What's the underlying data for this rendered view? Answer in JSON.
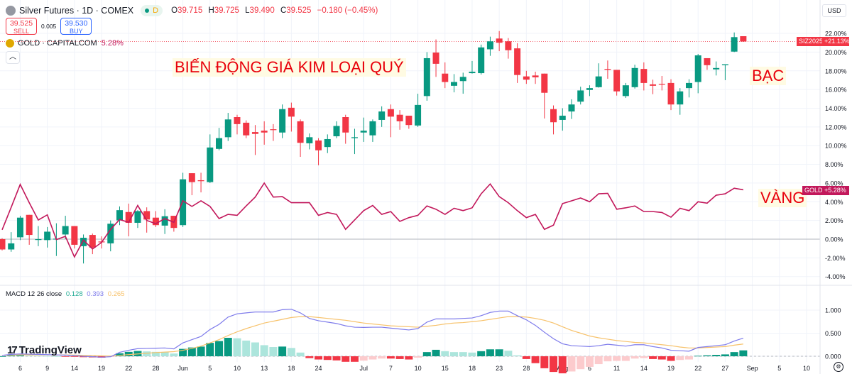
{
  "header": {
    "symbol": "Silver Futures · 1D · COMEX",
    "interval_badge": "D",
    "open_label": "O",
    "open": "39.715",
    "high_label": "H",
    "high": "39.725",
    "low_label": "L",
    "low": "39.490",
    "close_label": "C",
    "close": "39.525",
    "change": "−0.180 (−0.45%)"
  },
  "trade": {
    "sell_price": "39.525",
    "sell_label": "SELL",
    "spread": "0.005",
    "buy_price": "39.530",
    "buy_label": "BUY"
  },
  "compare": {
    "name": "GOLD · CAPITALCOM",
    "pct": "5.28%"
  },
  "currency": "USD",
  "annotations": {
    "title": "BIẾN ĐỘNG GIÁ KIM LOẠI QUÝ",
    "silver": "BẠC",
    "gold": "VÀNG"
  },
  "price_tags": {
    "silver_symbol": "SIZ2025",
    "silver_pct": "+21.13%",
    "gold_symbol": "GOLD",
    "gold_pct": "+5.28%"
  },
  "macd_legend": {
    "name": "MACD 12 26 close",
    "hist": "0.128",
    "macd": "0.393",
    "signal": "0.265"
  },
  "branding": "TradingView",
  "colors": {
    "up": "#089981",
    "down": "#F23645",
    "up_light": "#ACE5DC",
    "down_light": "#FCCBCD",
    "gold": "#C2185B",
    "macd": "#7E7BEB",
    "signal": "#F7C26B"
  },
  "chart_data": [
    {
      "type": "candlestick",
      "title": "Silver Futures · 1D · COMEX",
      "y_unit": "percent",
      "ylim": [
        -5,
        23
      ],
      "yticks": [
        "22.00%",
        "20.00%",
        "18.00%",
        "16.00%",
        "14.00%",
        "12.00%",
        "10.00%",
        "8.00%",
        "6.00%",
        "4.00%",
        "2.00%",
        "0.00%",
        "-2.00%",
        "-4.00%"
      ],
      "ytick_values": [
        22,
        20,
        18,
        16,
        14,
        12,
        10,
        8,
        6,
        4,
        2,
        0,
        -2,
        -4
      ],
      "xticks": [
        {
          "label": "6",
          "date": "2025-05-06"
        },
        {
          "label": "9",
          "date": "2025-05-09"
        },
        {
          "label": "14",
          "date": "2025-05-14"
        },
        {
          "label": "19",
          "date": "2025-05-19"
        },
        {
          "label": "22",
          "date": "2025-05-22"
        },
        {
          "label": "28",
          "date": "2025-05-28"
        },
        {
          "label": "Jun",
          "date": "2025-06-02"
        },
        {
          "label": "5",
          "date": "2025-06-05"
        },
        {
          "label": "10",
          "date": "2025-06-10"
        },
        {
          "label": "13",
          "date": "2025-06-13"
        },
        {
          "label": "18",
          "date": "2025-06-18"
        },
        {
          "label": "24",
          "date": "2025-06-24"
        },
        {
          "label": "Jul",
          "date": "2025-07-01"
        },
        {
          "label": "7",
          "date": "2025-07-07"
        },
        {
          "label": "10",
          "date": "2025-07-10"
        },
        {
          "label": "15",
          "date": "2025-07-15"
        },
        {
          "label": "18",
          "date": "2025-07-18"
        },
        {
          "label": "23",
          "date": "2025-07-23"
        },
        {
          "label": "28",
          "date": "2025-07-28"
        },
        {
          "label": "Aug",
          "date": "2025-08-01"
        },
        {
          "label": "6",
          "date": "2025-08-06"
        },
        {
          "label": "11",
          "date": "2025-08-11"
        },
        {
          "label": "14",
          "date": "2025-08-14"
        },
        {
          "label": "19",
          "date": "2025-08-19"
        },
        {
          "label": "22",
          "date": "2025-08-22"
        },
        {
          "label": "27",
          "date": "2025-08-27"
        },
        {
          "label": "Sep",
          "date": "2025-09-02"
        },
        {
          "label": "5",
          "date": "2025-09-05"
        },
        {
          "label": "10",
          "date": "2025-09-10"
        }
      ],
      "candle_fields": [
        "date",
        "open",
        "high",
        "low",
        "close"
      ],
      "candles": [
        [
          "2025-05-02",
          0,
          0.1,
          -1.2,
          -1.1
        ],
        [
          "2025-05-05",
          -1.1,
          0.75,
          -1.35,
          -0.45
        ],
        [
          "2025-05-06",
          0.2,
          2.5,
          -0.1,
          2.3
        ],
        [
          "2025-05-07",
          2.6,
          2.6,
          -0.6,
          0.45
        ],
        [
          "2025-05-08",
          -0.05,
          1.4,
          -0.75,
          0
        ],
        [
          "2025-05-09",
          -0.1,
          1.3,
          -0.9,
          0.8
        ],
        [
          "2025-05-12",
          0,
          1.7,
          -1.8,
          0.05
        ],
        [
          "2025-05-13",
          0.5,
          2.5,
          0,
          1.4
        ],
        [
          "2025-05-14",
          1.4,
          1.4,
          -1,
          -0.6
        ],
        [
          "2025-05-15",
          -0.75,
          0.5,
          -2.6,
          0.15
        ],
        [
          "2025-05-16",
          0.45,
          0.6,
          -1.6,
          -0.9
        ],
        [
          "2025-05-19",
          -0.25,
          0.3,
          -1,
          -0.3
        ],
        [
          "2025-05-20",
          -0.45,
          2,
          -1.3,
          1.65
        ],
        [
          "2025-05-21",
          2,
          3.5,
          1.5,
          3.1
        ],
        [
          "2025-05-22",
          2.9,
          3.8,
          0.3,
          1.75
        ],
        [
          "2025-05-23",
          1.75,
          3.1,
          1.2,
          3
        ],
        [
          "2025-05-27",
          3,
          3.4,
          0.7,
          2.1
        ],
        [
          "2025-05-28",
          2.3,
          3,
          1.3,
          1.5
        ],
        [
          "2025-05-29",
          1.45,
          3.2,
          0.55,
          2.45
        ],
        [
          "2025-05-30",
          2.5,
          2.5,
          0.8,
          1.2
        ],
        [
          "2025-06-02",
          1.5,
          7.1,
          1.3,
          6.4
        ],
        [
          "2025-06-03",
          7.05,
          7.05,
          4.7,
          6.1
        ],
        [
          "2025-06-04",
          6.3,
          7.1,
          5,
          6.2
        ],
        [
          "2025-06-05",
          6.1,
          11.2,
          6,
          9.8
        ],
        [
          "2025-06-06",
          9.65,
          11.9,
          9.5,
          10.8
        ],
        [
          "2025-06-09",
          10.9,
          13.5,
          10.5,
          12.8
        ],
        [
          "2025-06-10",
          13.05,
          13.3,
          11.2,
          12.3
        ],
        [
          "2025-06-11",
          12.45,
          12.7,
          10.8,
          11.1
        ],
        [
          "2025-06-12",
          11.45,
          12.2,
          9,
          11.25
        ],
        [
          "2025-06-13",
          11.6,
          12.6,
          10.1,
          11.4
        ],
        [
          "2025-06-16",
          11.75,
          12.3,
          10.5,
          11.7
        ],
        [
          "2025-06-17",
          11.4,
          14.4,
          10.8,
          13.9
        ],
        [
          "2025-06-18",
          14.05,
          14.6,
          11.5,
          13.1
        ],
        [
          "2025-06-20",
          12.6,
          12.8,
          8.8,
          10.3
        ],
        [
          "2025-06-23",
          10.25,
          11.3,
          9.6,
          10.9
        ],
        [
          "2025-06-24",
          10.55,
          10.8,
          7.9,
          9.5
        ],
        [
          "2025-06-25",
          9.85,
          11.2,
          9.2,
          10.7
        ],
        [
          "2025-06-26",
          11,
          12.6,
          10.8,
          12.1
        ],
        [
          "2025-06-27",
          13.05,
          13.3,
          10.2,
          11.4
        ],
        [
          "2025-06-30",
          10.8,
          11.8,
          9.1,
          10.9
        ],
        [
          "2025-07-01",
          11.4,
          13,
          10.4,
          11.6
        ],
        [
          "2025-07-02",
          11.1,
          12.8,
          10.4,
          12.6
        ],
        [
          "2025-07-03",
          12.75,
          14.2,
          12,
          13.65
        ],
        [
          "2025-07-07",
          13.9,
          14.4,
          10.9,
          13.1
        ],
        [
          "2025-07-08",
          13.3,
          13.8,
          11.7,
          12.6
        ],
        [
          "2025-07-09",
          13.2,
          13.2,
          11.8,
          12.2
        ],
        [
          "2025-07-10",
          12.15,
          15.55,
          12,
          14.35
        ],
        [
          "2025-07-11",
          15.3,
          20,
          14.8,
          19.35
        ],
        [
          "2025-07-14",
          19.95,
          21.35,
          17.35,
          18.75
        ],
        [
          "2025-07-15",
          17.7,
          18.9,
          16.15,
          16.8
        ],
        [
          "2025-07-16",
          16.4,
          17.65,
          15.7,
          16.8
        ],
        [
          "2025-07-17",
          16.9,
          17.8,
          15.55,
          17.35
        ],
        [
          "2025-07-18",
          17.75,
          19.05,
          17.7,
          17.9
        ],
        [
          "2025-07-21",
          17.75,
          20.8,
          17.6,
          20.5
        ],
        [
          "2025-07-22",
          20.3,
          21.65,
          19.6,
          21.15
        ],
        [
          "2025-07-23",
          21.45,
          22.25,
          20.1,
          21
        ],
        [
          "2025-07-24",
          21.15,
          21.5,
          19.3,
          20.2
        ],
        [
          "2025-07-25",
          20.4,
          20.95,
          16.7,
          17.55
        ],
        [
          "2025-07-28",
          17.4,
          18,
          16.6,
          17.05
        ],
        [
          "2025-07-29",
          17.5,
          17.9,
          16.6,
          17.3
        ],
        [
          "2025-07-30",
          17.7,
          17.7,
          12.9,
          15.65
        ],
        [
          "2025-07-31",
          13.9,
          14.3,
          11.2,
          12.5
        ],
        [
          "2025-08-01",
          12.75,
          14,
          11.6,
          13.2
        ],
        [
          "2025-08-04",
          13.65,
          14.95,
          12.85,
          14.4
        ],
        [
          "2025-08-05",
          14.7,
          16.3,
          14.4,
          15.9
        ],
        [
          "2025-08-06",
          15.95,
          16.45,
          15.3,
          16.15
        ],
        [
          "2025-08-07",
          16.25,
          18.8,
          16.2,
          17.4
        ],
        [
          "2025-08-08",
          18.2,
          19.1,
          17.15,
          18.1
        ],
        [
          "2025-08-11",
          18.1,
          18.1,
          15.35,
          15.8
        ],
        [
          "2025-08-12",
          15.3,
          16.7,
          15.1,
          16.45
        ],
        [
          "2025-08-13",
          16.25,
          18.65,
          16.1,
          18.3
        ],
        [
          "2025-08-14",
          18.2,
          18.9,
          15.9,
          16.7
        ],
        [
          "2025-08-15",
          16.55,
          17.05,
          15.5,
          16.4
        ],
        [
          "2025-08-18",
          16.6,
          17.45,
          15.9,
          16.55
        ],
        [
          "2025-08-19",
          16.7,
          17.1,
          13.8,
          14.4
        ],
        [
          "2025-08-20",
          14.4,
          16.15,
          13.3,
          15.8
        ],
        [
          "2025-08-21",
          16.15,
          17.1,
          15.15,
          16.7
        ],
        [
          "2025-08-22",
          16.8,
          19.8,
          15.6,
          19.65
        ],
        [
          "2025-08-25",
          19.35,
          19.35,
          18.1,
          18.6
        ],
        [
          "2025-08-26",
          18.15,
          19,
          17.5,
          18.3
        ],
        [
          "2025-08-27",
          18.6,
          18.7,
          17,
          18.7
        ],
        [
          "2025-08-28",
          20.05,
          22.1,
          20,
          21.6
        ],
        [
          "2025-08-29",
          21.7,
          21.7,
          21.1,
          21.13
        ]
      ],
      "compare_series": {
        "name": "GOLD",
        "values": [
          1,
          3.4,
          5.85,
          3.9,
          2.05,
          2.6,
          -0.05,
          0.3,
          -1.9,
          -0.1,
          -1.05,
          -0.35,
          1.05,
          2.1,
          1.8,
          3.6,
          2,
          1.65,
          2.2,
          1.8,
          4.1,
          3.5,
          4.1,
          3.5,
          2.2,
          2.65,
          2.55,
          3.55,
          4.5,
          6,
          4.5,
          4.55,
          3.9,
          3.9,
          3.9,
          2.55,
          2.85,
          2.65,
          1.05,
          2.05,
          3.05,
          3.6,
          2.65,
          2.95,
          1.9,
          2.3,
          2.55,
          3.55,
          3.2,
          2.65,
          3.3,
          3.05,
          3.35,
          4.85,
          5.9,
          4.55,
          3.9,
          3.05,
          2.3,
          2.65,
          1.05,
          1.5,
          3.8,
          4.1,
          4.4,
          4,
          4.85,
          4.9,
          3.2,
          3.35,
          3.55,
          2.95,
          2.95,
          2.85,
          2.35,
          3.3,
          3.05,
          4,
          3.85,
          4.7,
          4.85,
          5.45,
          5.28
        ]
      }
    },
    {
      "type": "line",
      "title": "MACD 12 26 close",
      "ylim": [
        -0.15,
        1.2
      ],
      "yticks": [
        "1.000",
        "0.500",
        "0.000"
      ],
      "ytick_values": [
        1,
        0.5,
        0
      ],
      "series": [
        {
          "name": "MACD",
          "values": [
            0.02,
            0.04,
            0.05,
            0.045,
            0.04,
            0.035,
            0.03,
            0.025,
            0.015,
            0,
            -0.01,
            -0.02,
            -0.01,
            0.085,
            0.13,
            0.165,
            0.17,
            0.175,
            0.18,
            0.16,
            0.29,
            0.36,
            0.43,
            0.58,
            0.69,
            0.85,
            0.92,
            0.94,
            0.96,
            0.96,
            0.96,
            1.01,
            1.02,
            0.94,
            0.82,
            0.77,
            0.74,
            0.71,
            0.66,
            0.63,
            0.625,
            0.63,
            0.63,
            0.61,
            0.59,
            0.57,
            0.6,
            0.74,
            0.81,
            0.81,
            0.81,
            0.82,
            0.83,
            0.88,
            0.95,
            0.98,
            0.98,
            0.88,
            0.79,
            0.67,
            0.52,
            0.38,
            0.27,
            0.23,
            0.22,
            0.21,
            0.23,
            0.26,
            0.24,
            0.22,
            0.25,
            0.25,
            0.21,
            0.18,
            0.13,
            0.12,
            0.11,
            0.19,
            0.21,
            0.23,
            0.25,
            0.33,
            0.393
          ]
        },
        {
          "name": "Signal",
          "values": [
            0.02,
            0.025,
            0.03,
            0.03,
            0.03,
            0.03,
            0.03,
            0.03,
            0.025,
            0.02,
            0.015,
            0.01,
            0.005,
            0.02,
            0.035,
            0.05,
            0.065,
            0.08,
            0.09,
            0.1,
            0.13,
            0.17,
            0.22,
            0.29,
            0.36,
            0.45,
            0.53,
            0.6,
            0.66,
            0.72,
            0.76,
            0.8,
            0.84,
            0.86,
            0.86,
            0.84,
            0.82,
            0.8,
            0.78,
            0.75,
            0.72,
            0.7,
            0.68,
            0.66,
            0.65,
            0.64,
            0.63,
            0.65,
            0.67,
            0.7,
            0.72,
            0.73,
            0.75,
            0.77,
            0.8,
            0.83,
            0.86,
            0.86,
            0.85,
            0.82,
            0.78,
            0.72,
            0.64,
            0.56,
            0.5,
            0.44,
            0.4,
            0.37,
            0.34,
            0.32,
            0.3,
            0.29,
            0.27,
            0.25,
            0.23,
            0.2,
            0.18,
            0.18,
            0.19,
            0.2,
            0.21,
            0.24,
            0.265
          ]
        }
      ]
    }
  ]
}
